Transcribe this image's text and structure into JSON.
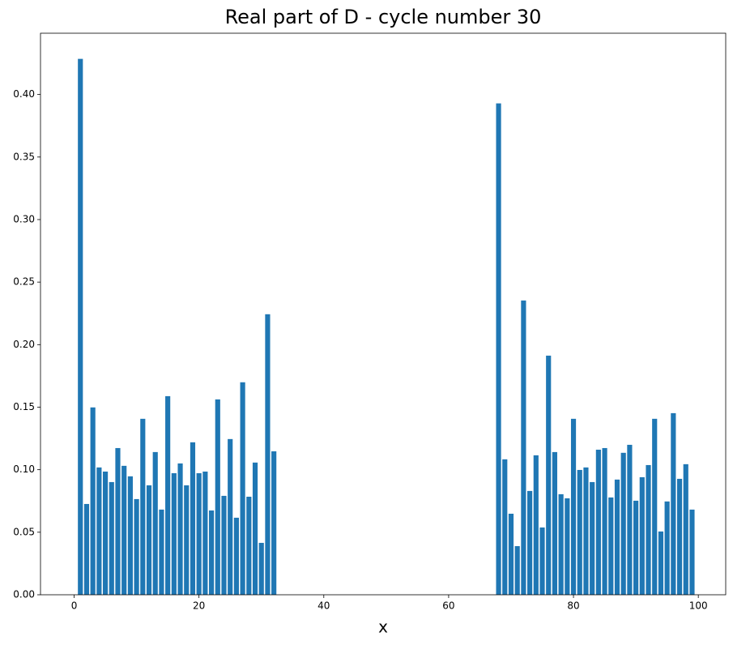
{
  "chart_data": {
    "type": "bar",
    "title": "Real part of D - cycle number 30",
    "xlabel": "x",
    "x": [
      1,
      2,
      3,
      4,
      5,
      6,
      7,
      8,
      9,
      10,
      11,
      12,
      13,
      14,
      15,
      16,
      17,
      18,
      19,
      20,
      21,
      22,
      23,
      24,
      25,
      26,
      27,
      28,
      29,
      30,
      31,
      32,
      68,
      69,
      70,
      71,
      72,
      73,
      74,
      75,
      76,
      77,
      78,
      79,
      80,
      81,
      82,
      83,
      84,
      85,
      86,
      87,
      88,
      89,
      90,
      91,
      92,
      93,
      94,
      95,
      96,
      97,
      98,
      99
    ],
    "values": [
      0.4285,
      0.0726,
      0.1498,
      0.1018,
      0.0985,
      0.0901,
      0.1173,
      0.1031,
      0.0947,
      0.0765,
      0.1407,
      0.0875,
      0.1141,
      0.0681,
      0.1588,
      0.0972,
      0.105,
      0.0875,
      0.1219,
      0.0972,
      0.0985,
      0.0674,
      0.1562,
      0.0791,
      0.1245,
      0.0616,
      0.1699,
      0.0784,
      0.1057,
      0.0415,
      0.2243,
      0.1147,
      0.3929,
      0.1083,
      0.0648,
      0.0389,
      0.2353,
      0.083,
      0.1115,
      0.0538,
      0.1912,
      0.1141,
      0.0804,
      0.0771,
      0.1407,
      0.0998,
      0.1018,
      0.0901,
      0.116,
      0.1173,
      0.0778,
      0.0921,
      0.1135,
      0.1199,
      0.0752,
      0.094,
      0.1037,
      0.1407,
      0.0506,
      0.0746,
      0.1452,
      0.0927,
      0.1044,
      0.0681
    ],
    "color": "#1f77b4",
    "bar_width": 0.8,
    "xlim": [
      -5.39,
      104.39
    ],
    "xticks": [
      0,
      20,
      40,
      60,
      80,
      100
    ],
    "ylim": [
      0,
      0.449
    ],
    "yticks": [
      {
        "value": 0,
        "label": "0.00"
      },
      {
        "value": 0.05,
        "label": "0.05"
      },
      {
        "value": 0.1,
        "label": "0.10"
      },
      {
        "value": 0.15,
        "label": "0.15"
      },
      {
        "value": 0.2,
        "label": "0.20"
      },
      {
        "value": 0.25,
        "label": "0.25"
      },
      {
        "value": 0.3,
        "label": "0.30"
      },
      {
        "value": 0.35,
        "label": "0.35"
      },
      {
        "value": 0.4,
        "label": "0.40"
      }
    ],
    "grid": false
  }
}
